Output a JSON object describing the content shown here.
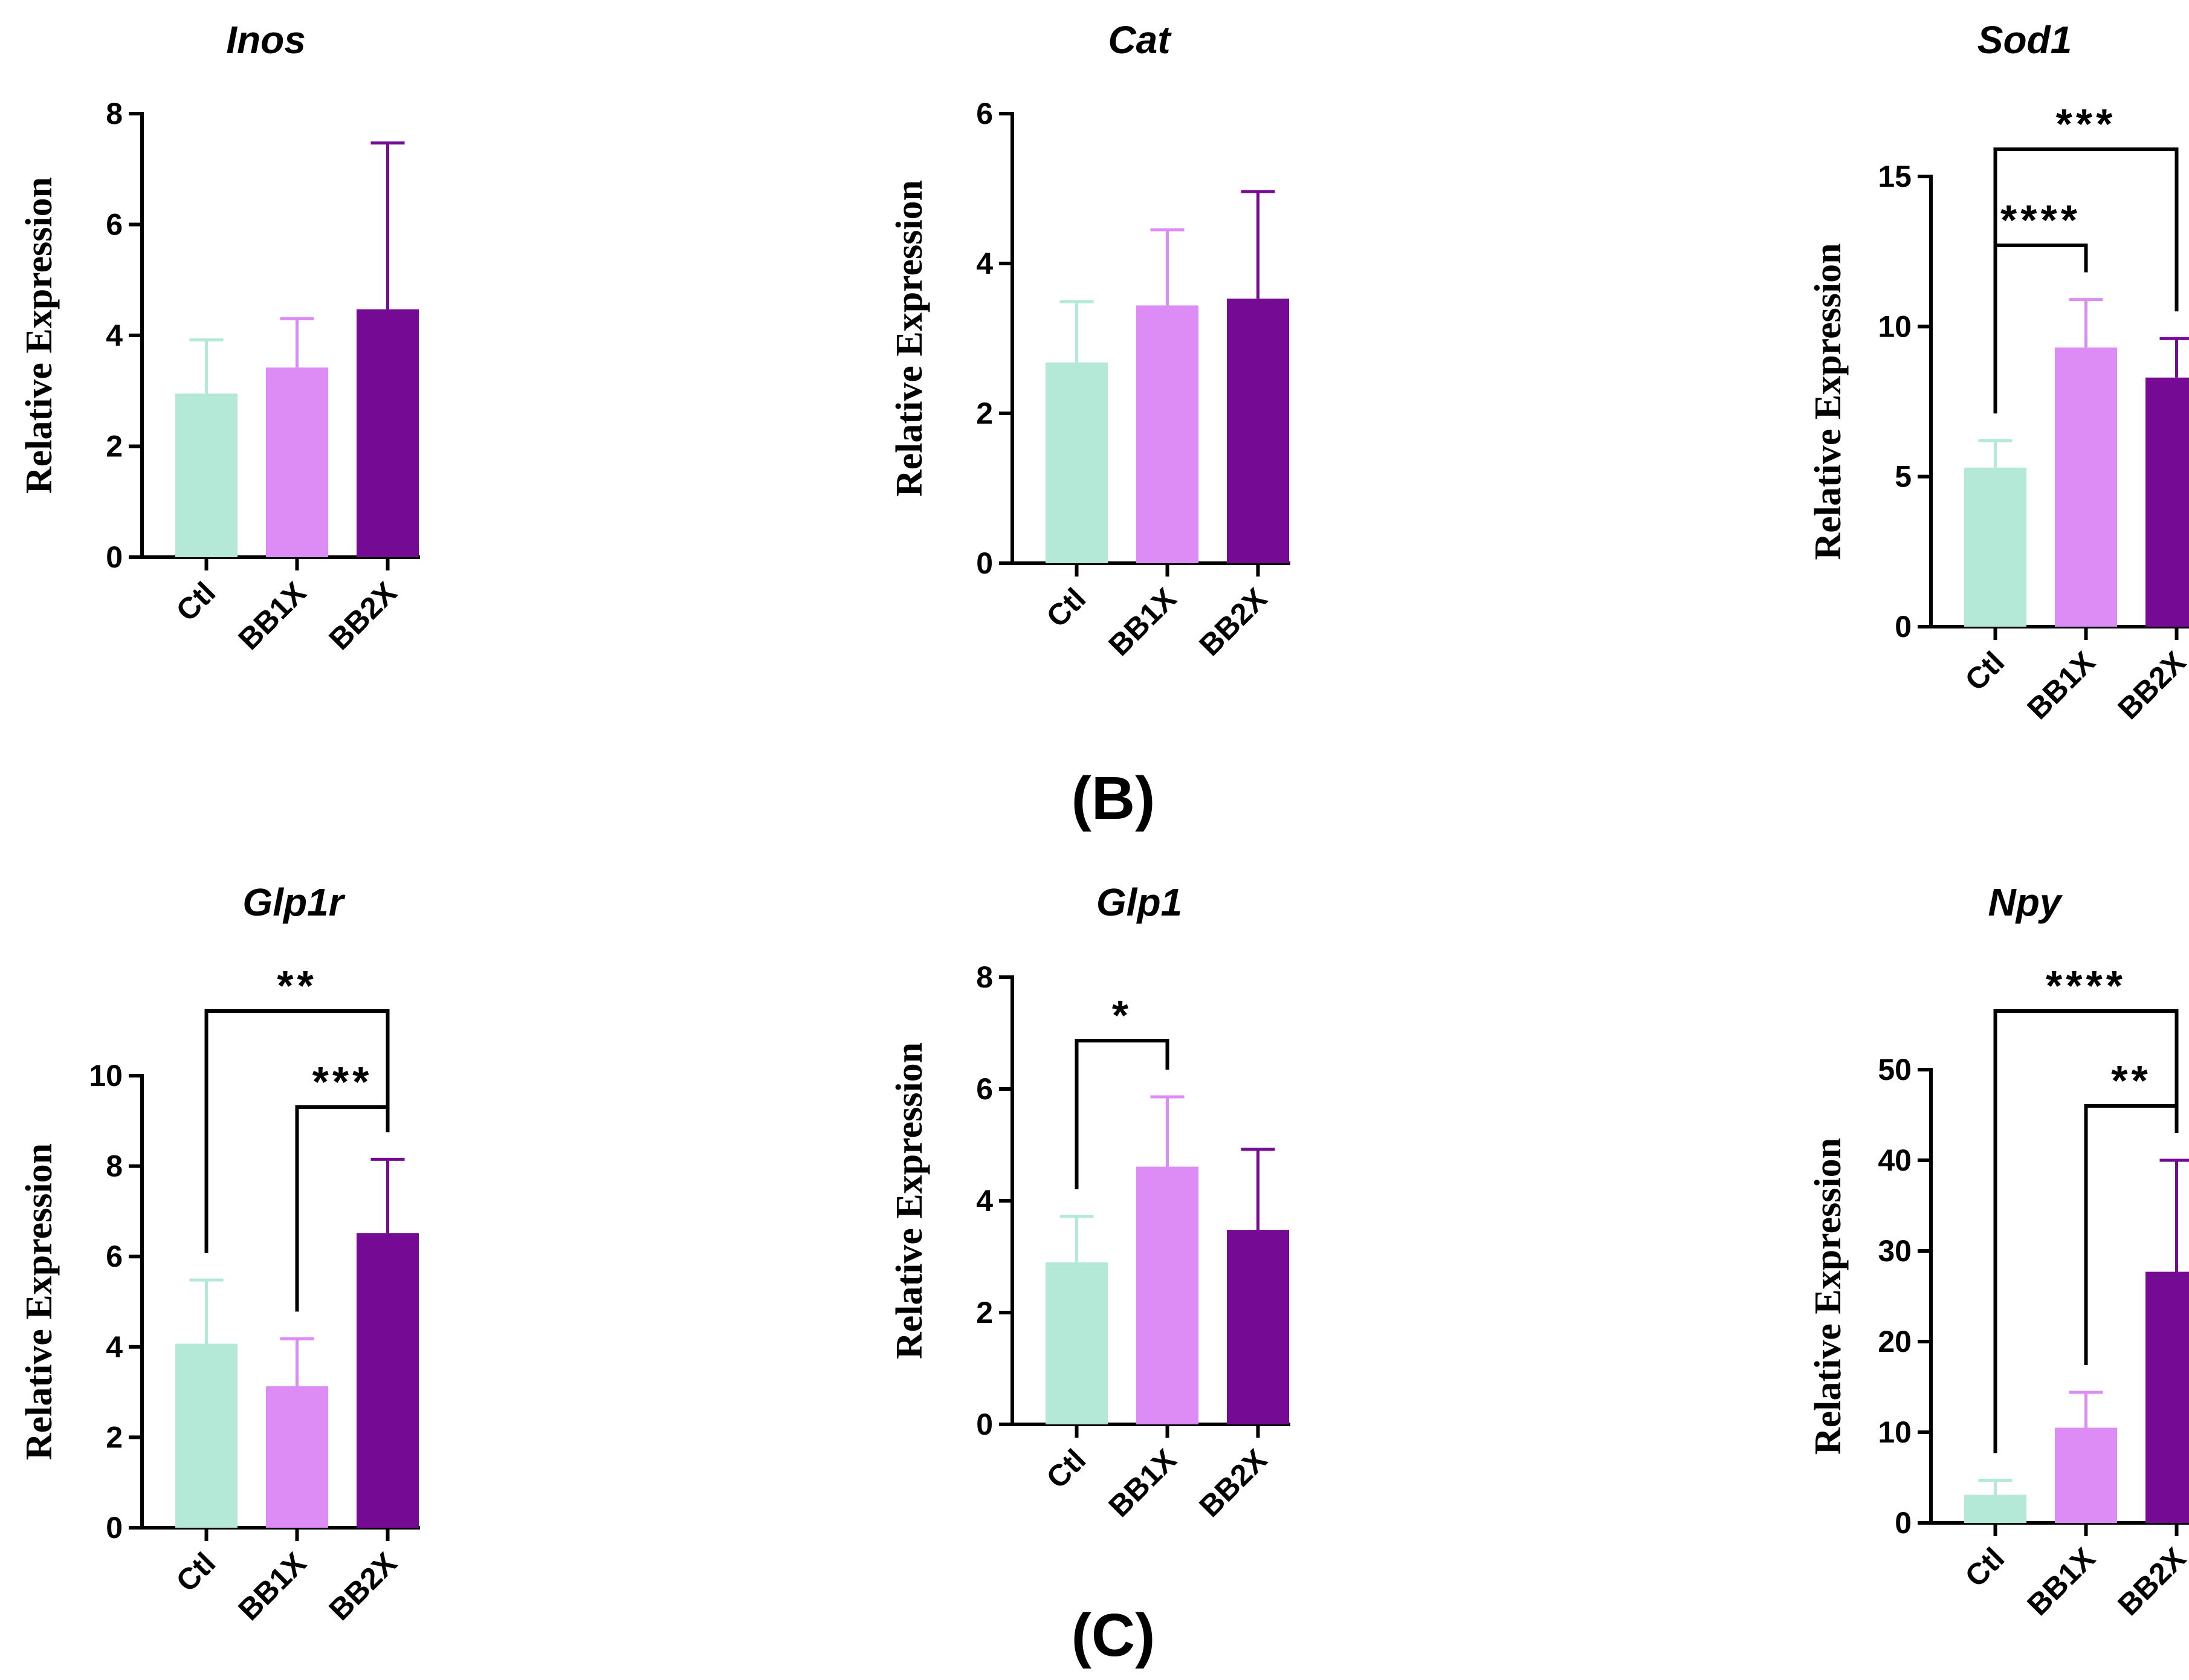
{
  "panel_labels": [
    "(B)",
    "(C)"
  ],
  "colors": {
    "Ctl": "#b5e9d7",
    "BB1X": "#dd8bf5",
    "BB2X": "#750a94"
  },
  "chart_data": [
    {
      "type": "bar",
      "title": "Inos",
      "ylabel": "Relative Expression",
      "categories": [
        "Ctl",
        "BB1X",
        "BB2X"
      ],
      "values": [
        2.95,
        3.42,
        4.47
      ],
      "errors": [
        0.97,
        0.88,
        3.0
      ],
      "ylim": [
        0,
        8
      ],
      "yticks": [
        0,
        2,
        4,
        6,
        8
      ],
      "significance": []
    },
    {
      "type": "bar",
      "title": "Cat",
      "ylabel": "Relative Expression",
      "categories": [
        "Ctl",
        "BB1X",
        "BB2X"
      ],
      "values": [
        2.68,
        3.44,
        3.53
      ],
      "errors": [
        0.81,
        1.01,
        1.43
      ],
      "ylim": [
        0,
        6
      ],
      "yticks": [
        0,
        2,
        4,
        6
      ],
      "significance": []
    },
    {
      "type": "bar",
      "title": "Sod1",
      "ylabel": "Relative Expression",
      "categories": [
        "Ctl",
        "BB1X",
        "BB2X"
      ],
      "values": [
        5.3,
        9.3,
        8.3
      ],
      "errors": [
        0.9,
        1.6,
        1.3
      ],
      "ylim": [
        0,
        15
      ],
      "yticks": [
        0,
        5,
        10,
        15
      ],
      "significance": [
        {
          "from": 0,
          "to": 1,
          "label": "****"
        },
        {
          "from": 0,
          "to": 2,
          "label": "***"
        }
      ]
    },
    {
      "type": "bar",
      "title": "Glp1r",
      "ylabel": "Relative Expression",
      "categories": [
        "Ctl",
        "BB1X",
        "BB2X"
      ],
      "values": [
        4.07,
        3.13,
        6.52
      ],
      "errors": [
        1.41,
        1.05,
        1.63
      ],
      "ylim": [
        0,
        10
      ],
      "yticks": [
        0,
        2,
        4,
        6,
        8,
        10
      ],
      "significance": [
        {
          "from": 1,
          "to": 2,
          "label": "***"
        },
        {
          "from": 0,
          "to": 2,
          "label": "**"
        }
      ]
    },
    {
      "type": "bar",
      "title": "Glp1",
      "ylabel": "Relative Expression",
      "categories": [
        "Ctl",
        "BB1X",
        "BB2X"
      ],
      "values": [
        2.9,
        4.61,
        3.48
      ],
      "errors": [
        0.82,
        1.25,
        1.44
      ],
      "ylim": [
        0,
        8
      ],
      "yticks": [
        0,
        2,
        4,
        6,
        8
      ],
      "significance": [
        {
          "from": 0,
          "to": 1,
          "label": "*"
        }
      ]
    },
    {
      "type": "bar",
      "title": "Npy",
      "ylabel": "Relative Expression",
      "categories": [
        "Ctl",
        "BB1X",
        "BB2X"
      ],
      "values": [
        3.1,
        10.5,
        27.7
      ],
      "errors": [
        1.6,
        3.9,
        12.3
      ],
      "ylim": [
        0,
        50
      ],
      "yticks": [
        0,
        10,
        20,
        30,
        40,
        50
      ],
      "significance": [
        {
          "from": 1,
          "to": 2,
          "label": "**"
        },
        {
          "from": 0,
          "to": 2,
          "label": "****"
        }
      ]
    }
  ]
}
